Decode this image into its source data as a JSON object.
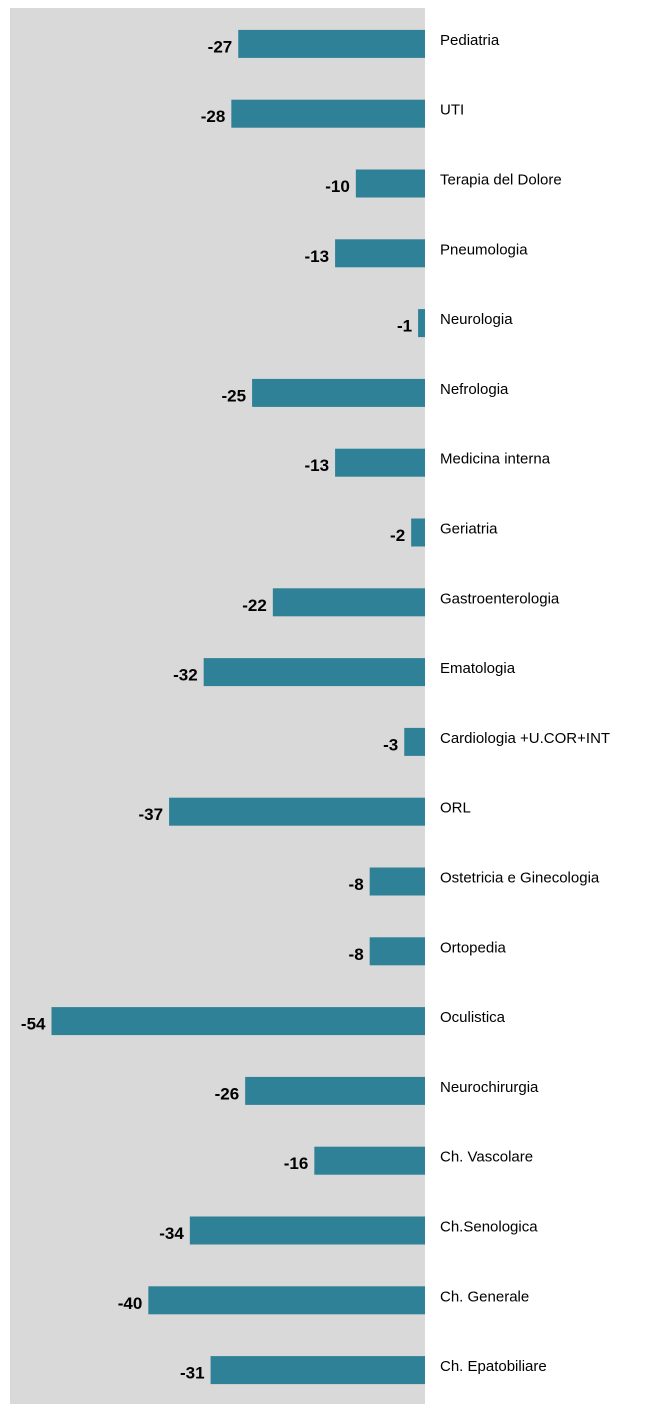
{
  "chart_data": {
    "type": "barh",
    "categories": [
      "Pediatria",
      "UTI",
      "Terapia del Dolore",
      "Pneumologia",
      "Neurologia",
      "Nefrologia",
      "Medicina interna",
      "Geriatria",
      "Gastroenterologia",
      "Ematologia",
      "Cardiologia +U.COR+INT",
      "ORL",
      "Ostetricia e Ginecologia",
      "Ortopedia",
      "Oculistica",
      "Neurochirurgia",
      "Ch. Vascolare",
      "Ch.Senologica",
      "Ch. Generale",
      "Ch. Epatobiliare"
    ],
    "values": [
      -27,
      -28,
      -10,
      -13,
      -1,
      -25,
      -13,
      -2,
      -22,
      -32,
      -3,
      -37,
      -8,
      -8,
      -54,
      -26,
      -16,
      -34,
      -40,
      -31
    ],
    "color": "#2e8196",
    "xlim": [
      -60,
      0
    ]
  }
}
